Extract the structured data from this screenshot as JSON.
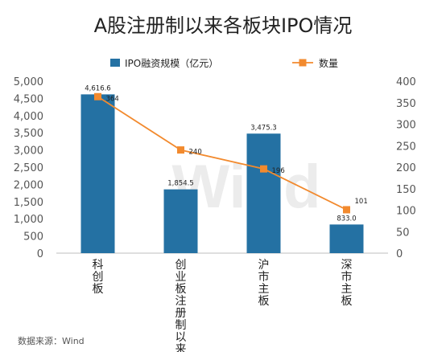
{
  "chart_data": {
    "type": "bar",
    "title": "A股注册制以来各板块IPO情况",
    "categories": [
      "科创板",
      "创业板注册制以来",
      "沪市主板",
      "深市主板"
    ],
    "series": [
      {
        "name": "IPO融资规模（亿元）",
        "type": "bar",
        "axis": "left",
        "color": "#2471a3",
        "values": [
          4616.6,
          1854.5,
          3475.3,
          833.0
        ],
        "labels": [
          "4,616.6",
          "1,854.5",
          "3,475.3",
          "833.0"
        ]
      },
      {
        "name": "数量",
        "type": "line",
        "axis": "right",
        "color": "#f28a2e",
        "values": [
          364,
          240,
          196,
          101
        ],
        "labels": [
          "364",
          "240",
          "196",
          "101"
        ]
      }
    ],
    "y_left": {
      "range": [
        0,
        5000
      ],
      "ticks": [
        "0",
        "500",
        "1,000",
        "1,500",
        "2,000",
        "2,500",
        "3,000",
        "3,500",
        "4,000",
        "4,500",
        "5,000"
      ]
    },
    "y_right": {
      "range": [
        0,
        400
      ],
      "ticks": [
        "0",
        "50",
        "100",
        "150",
        "200",
        "250",
        "300",
        "350",
        "400"
      ]
    },
    "legend_position": "top",
    "grid": false
  },
  "watermark": "Wind",
  "source": "数据来源：Wind"
}
